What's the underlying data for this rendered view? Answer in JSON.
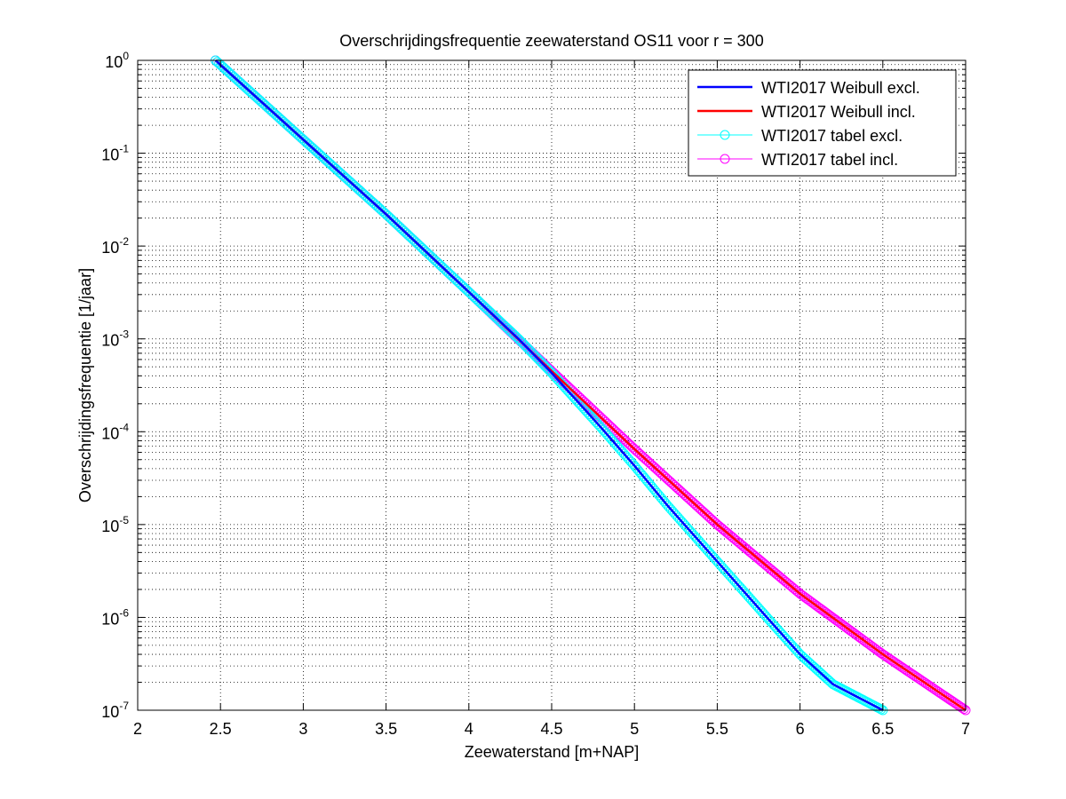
{
  "chart_data": {
    "type": "line",
    "title": "Overschrijdingsfrequentie zeewaterstand OS11 voor r = 300",
    "xlabel": "Zeewaterstand [m+NAP]",
    "ylabel": "Overschrijdingsfrequentie [1/jaar]",
    "xlim": [
      2,
      7
    ],
    "ylim": [
      1e-07,
      1
    ],
    "yscale": "log",
    "grid": true,
    "legend_position": "top-right",
    "x_ticks": [
      "2",
      "2.5",
      "3",
      "3.5",
      "4",
      "4.5",
      "5",
      "5.5",
      "6",
      "6.5",
      "7"
    ],
    "y_ticks": [
      {
        "base": "10",
        "exp": "0"
      },
      {
        "base": "10",
        "exp": "-1"
      },
      {
        "base": "10",
        "exp": "-2"
      },
      {
        "base": "10",
        "exp": "-3"
      },
      {
        "base": "10",
        "exp": "-4"
      },
      {
        "base": "10",
        "exp": "-5"
      },
      {
        "base": "10",
        "exp": "-6"
      },
      {
        "base": "10",
        "exp": "-7"
      }
    ],
    "series": [
      {
        "name": "WTI2017 Weibull excl.",
        "color": "#0000ff",
        "marker": "none",
        "x": [
          2.47,
          3.0,
          3.5,
          4.0,
          4.3,
          4.5,
          4.8,
          5.0,
          5.2,
          5.5,
          5.8,
          6.0,
          6.2,
          6.5
        ],
        "y": [
          1.0,
          0.14,
          0.022,
          0.0032,
          0.001,
          0.00043,
          0.00011,
          4.3e-05,
          1.6e-05,
          4e-06,
          1e-06,
          4e-07,
          1.9e-07,
          1e-07
        ]
      },
      {
        "name": "WTI2017 Weibull incl.",
        "color": "#ff0000",
        "marker": "none",
        "x": [
          2.47,
          3.0,
          3.5,
          4.0,
          4.5,
          5.0,
          5.5,
          6.0,
          6.5,
          7.0
        ],
        "y": [
          1.0,
          0.14,
          0.022,
          0.0032,
          0.00045,
          6.5e-05,
          1e-05,
          1.8e-06,
          4e-07,
          1e-07
        ]
      },
      {
        "name": "WTI2017 tabel excl.",
        "color": "#00ffff",
        "marker": "circle",
        "x": [
          2.47,
          3.0,
          3.5,
          4.0,
          4.3,
          4.5,
          4.8,
          5.0,
          5.2,
          5.5,
          5.8,
          6.0,
          6.2,
          6.5
        ],
        "y": [
          1.0,
          0.14,
          0.022,
          0.0032,
          0.001,
          0.00043,
          0.00011,
          4.3e-05,
          1.6e-05,
          4e-06,
          1e-06,
          4e-07,
          1.9e-07,
          1e-07
        ]
      },
      {
        "name": "WTI2017 tabel incl.",
        "color": "#ff00ff",
        "marker": "circle",
        "x": [
          2.47,
          3.0,
          3.5,
          4.0,
          4.5,
          5.0,
          5.5,
          6.0,
          6.5,
          7.0
        ],
        "y": [
          1.0,
          0.14,
          0.022,
          0.0032,
          0.00045,
          6.5e-05,
          1e-05,
          1.8e-06,
          4e-07,
          1e-07
        ]
      }
    ]
  }
}
